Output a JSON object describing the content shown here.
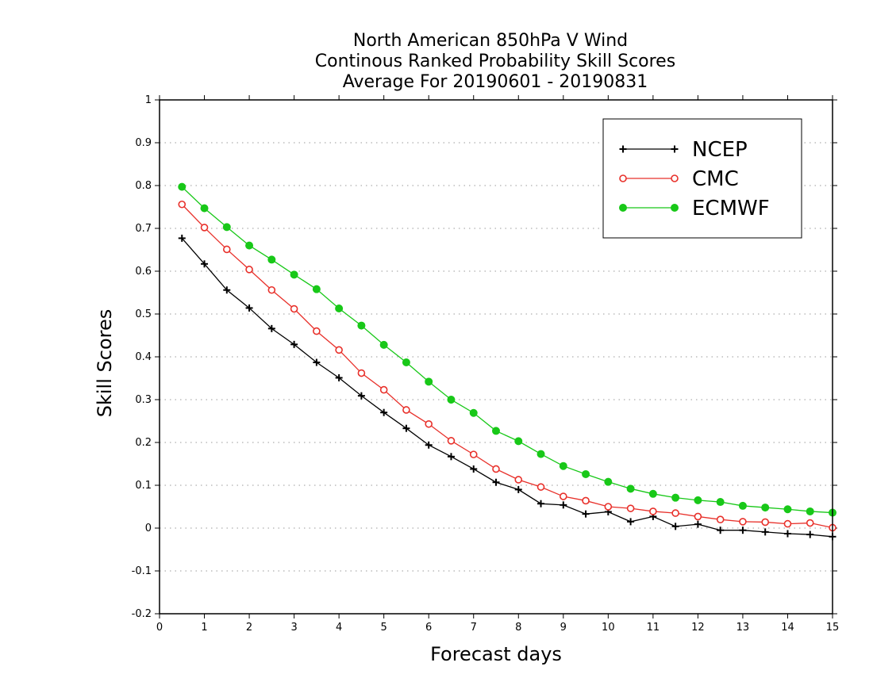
{
  "chart_data": {
    "type": "line",
    "title_lines": [
      "North American 850hPa V Wind",
      "Continous Ranked Probability Skill Scores",
      "Average For 20190601 - 20190831"
    ],
    "xlabel": "Forecast days",
    "ylabel": "Skill Scores",
    "xlim": [
      0,
      15
    ],
    "ylim": [
      -0.2,
      1
    ],
    "xticks": [
      0,
      1,
      2,
      3,
      4,
      5,
      6,
      7,
      8,
      9,
      10,
      11,
      12,
      13,
      14,
      15
    ],
    "xtick_labels": [
      "0",
      "1",
      "2",
      "3",
      "4",
      "5",
      "6",
      "7",
      "8",
      "9",
      "10",
      "11",
      "12",
      "13",
      "14",
      "15"
    ],
    "yticks": [
      -0.2,
      -0.1,
      0,
      0.1,
      0.2,
      0.3,
      0.4,
      0.5,
      0.6,
      0.7,
      0.8,
      0.9,
      1
    ],
    "ytick_labels": [
      "-0.2",
      "-0.1",
      "0",
      "0.1",
      "0.2",
      "0.3",
      "0.4",
      "0.5",
      "0.6",
      "0.7",
      "0.8",
      "0.9",
      "1"
    ],
    "grid": "horizontal dotted",
    "legend_position": "top-right",
    "x": [
      0.5,
      1,
      1.5,
      2,
      2.5,
      3,
      3.5,
      4,
      4.5,
      5,
      5.5,
      6,
      6.5,
      7,
      7.5,
      8,
      8.5,
      9,
      9.5,
      10,
      10.5,
      11,
      11.5,
      12,
      12.5,
      13,
      13.5,
      14,
      14.5,
      15
    ],
    "series": [
      {
        "name": "NCEP",
        "color": "#000000",
        "marker": "plus",
        "values": [
          0.677,
          0.617,
          0.556,
          0.514,
          0.466,
          0.429,
          0.387,
          0.351,
          0.309,
          0.27,
          0.233,
          0.194,
          0.167,
          0.138,
          0.107,
          0.09,
          0.057,
          0.054,
          0.033,
          0.038,
          0.015,
          0.027,
          0.004,
          0.009,
          -0.005,
          -0.005,
          -0.009,
          -0.013,
          -0.015,
          -0.02
        ]
      },
      {
        "name": "CMC",
        "color": "#e8302a",
        "marker": "open-circle",
        "values": [
          0.756,
          0.702,
          0.651,
          0.604,
          0.556,
          0.512,
          0.46,
          0.416,
          0.362,
          0.323,
          0.276,
          0.243,
          0.204,
          0.172,
          0.138,
          0.113,
          0.096,
          0.074,
          0.064,
          0.05,
          0.046,
          0.039,
          0.035,
          0.027,
          0.02,
          0.015,
          0.014,
          0.01,
          0.012,
          0.001
        ]
      },
      {
        "name": "ECMWF",
        "color": "#18c818",
        "marker": "filled-circle",
        "values": [
          0.797,
          0.747,
          0.703,
          0.66,
          0.627,
          0.592,
          0.558,
          0.513,
          0.473,
          0.428,
          0.387,
          0.342,
          0.3,
          0.269,
          0.227,
          0.203,
          0.173,
          0.145,
          0.126,
          0.108,
          0.092,
          0.08,
          0.071,
          0.065,
          0.061,
          0.052,
          0.048,
          0.044,
          0.039,
          0.036
        ]
      }
    ]
  }
}
